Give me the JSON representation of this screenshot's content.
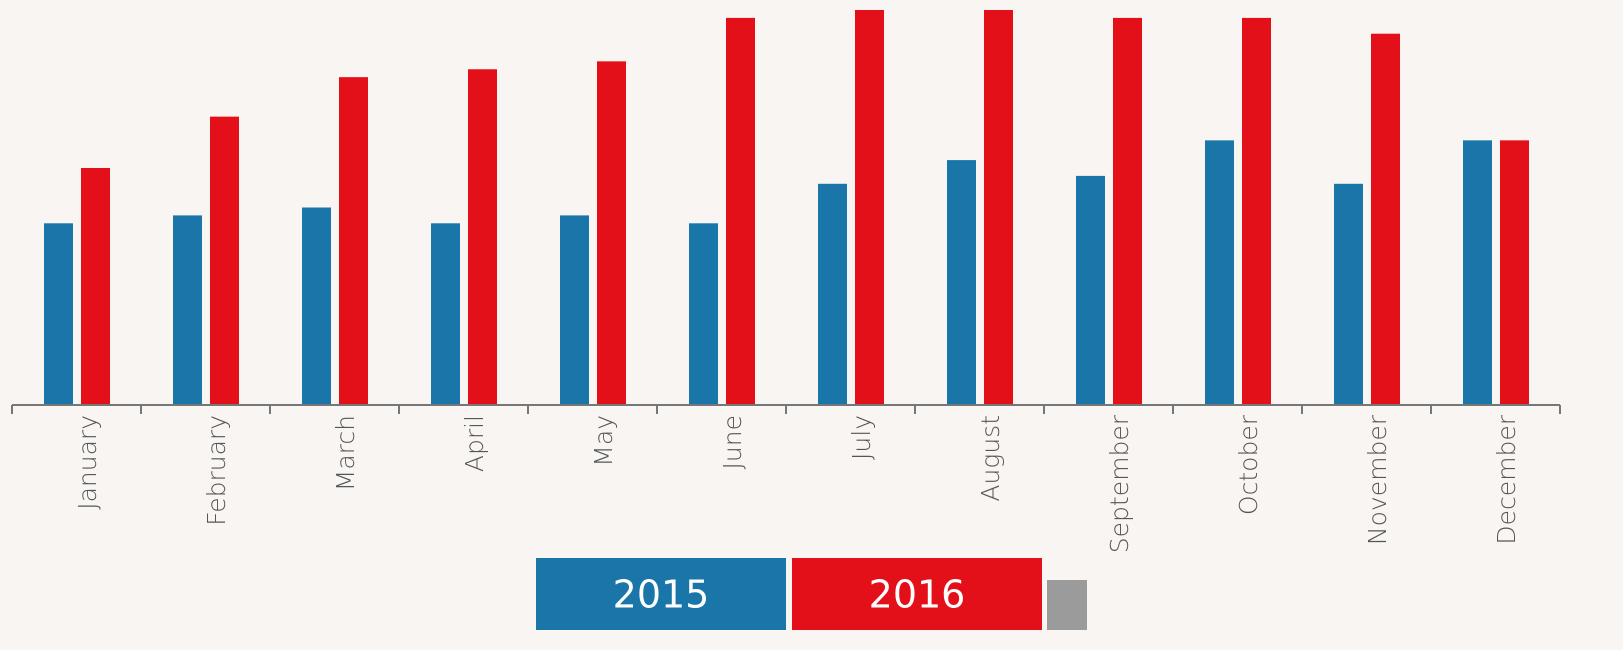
{
  "chart_data": {
    "type": "bar",
    "categories": [
      "January",
      "February",
      "March",
      "April",
      "May",
      "June",
      "July",
      "August",
      "September",
      "October",
      "November",
      "December"
    ],
    "series": [
      {
        "name": "2015",
        "color": "#1a75a8",
        "values": [
          46,
          48,
          50,
          46,
          48,
          46,
          56,
          62,
          58,
          67,
          56,
          67
        ]
      },
      {
        "name": "2016",
        "color": "#e41019",
        "values": [
          60,
          73,
          83,
          85,
          87,
          98,
          100,
          100,
          98,
          98,
          94,
          67
        ]
      }
    ],
    "ylim": [
      0,
      100
    ]
  }
}
